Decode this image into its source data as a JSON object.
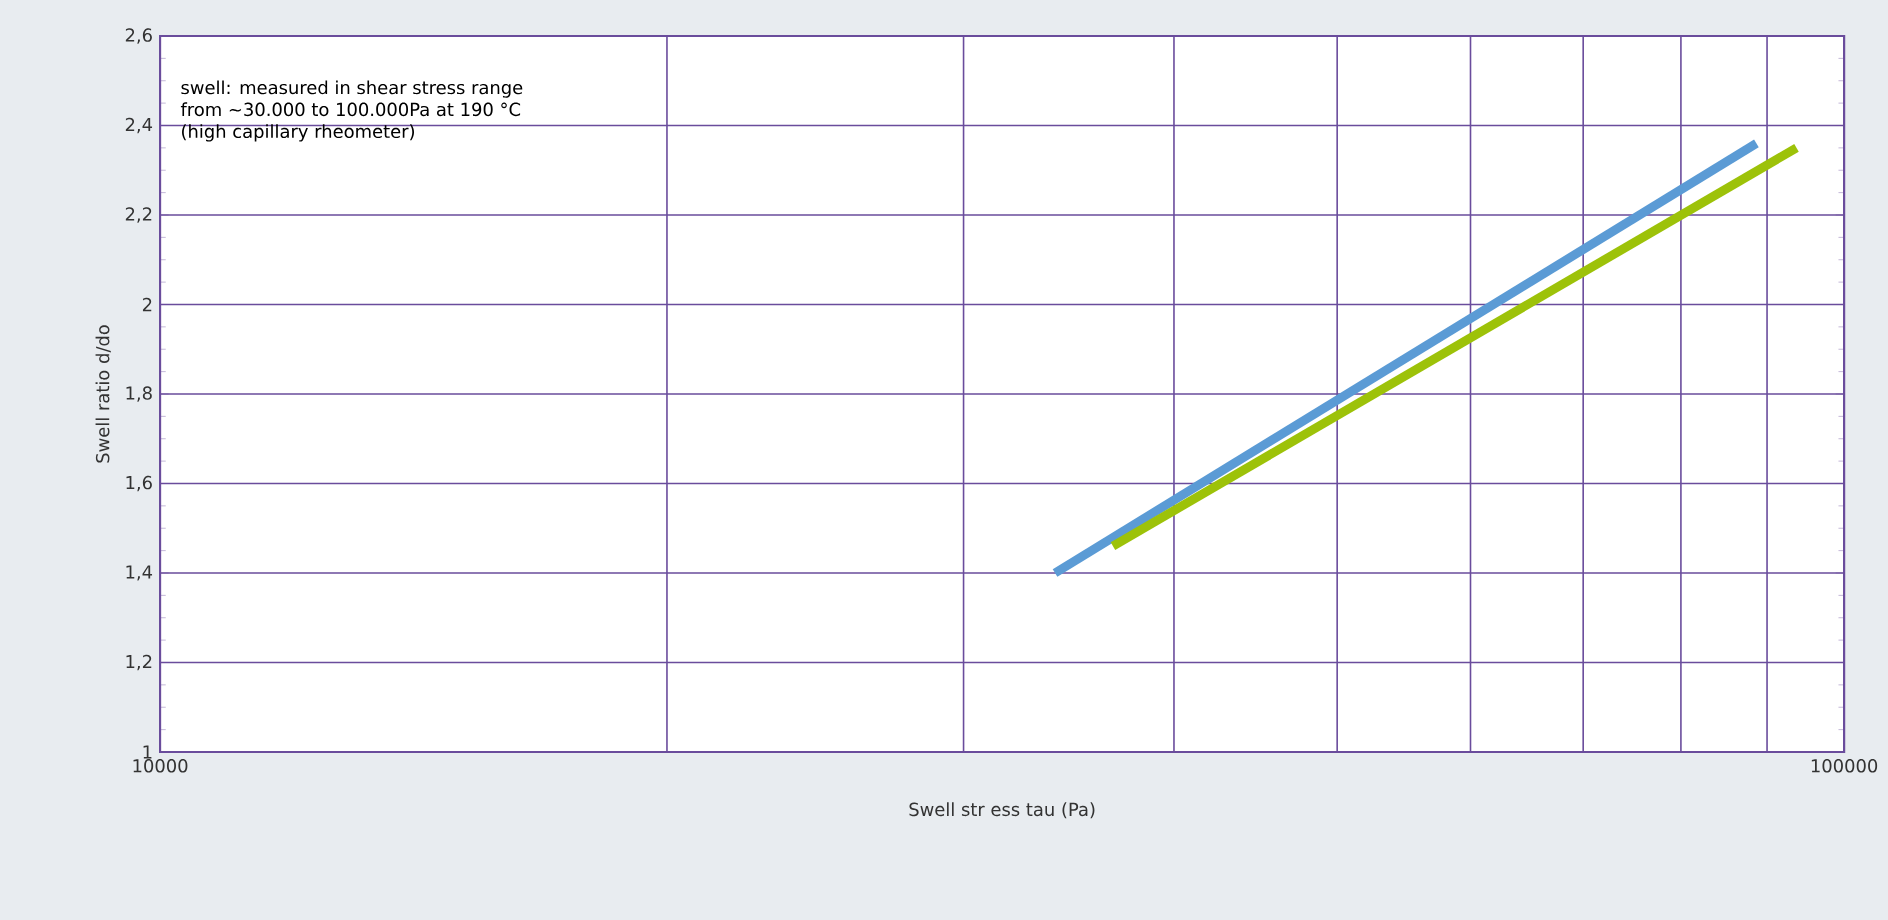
{
  "chart_data": {
    "type": "line",
    "xlabel": "Swell str ess tau (Pa)",
    "ylabel": "Swell ratio d/do",
    "annotations": [
      "swell: measured in shear stress range",
      "from ~30.000 to 100.000Pa at 190 °C",
      "(high capillary rheometer)"
    ],
    "log": "x",
    "grid": true,
    "marker": "none",
    "line_style": "solid",
    "xlim": [
      10000,
      100000
    ],
    "xticks": [
      10000,
      {
        "value": 20000,
        "label": null
      },
      {
        "value": 30000,
        "label": null
      },
      {
        "value": 40000,
        "label": null
      },
      {
        "value": 50000,
        "label": null
      },
      {
        "value": 60000,
        "label": null
      },
      {
        "value": 70000,
        "label": null
      },
      {
        "value": 80000,
        "label": null
      },
      {
        "value": 90000,
        "label": null
      },
      100000
    ],
    "ylim": [
      1,
      2.6
    ],
    "yticks": [
      1,
      {
        "value": 1.2,
        "label": "1,2"
      },
      {
        "value": 1.4,
        "label": "1,4"
      },
      {
        "value": 1.6,
        "label": "1,6"
      },
      {
        "value": 1.8,
        "label": "1,8"
      },
      2,
      {
        "value": 2.2,
        "label": "2,2"
      },
      {
        "value": 2.4,
        "label": "2,4"
      },
      {
        "value": 2.6,
        "label": "2,6"
      }
    ],
    "series": [
      {
        "color": "#5b9bd5",
        "x": [
          34000,
          88700
        ],
        "values": [
          1.4,
          2.36
        ]
      },
      {
        "color": "#9dc209",
        "x": [
          36800,
          93700
        ],
        "values": [
          1.46,
          2.35
        ]
      }
    ]
  }
}
